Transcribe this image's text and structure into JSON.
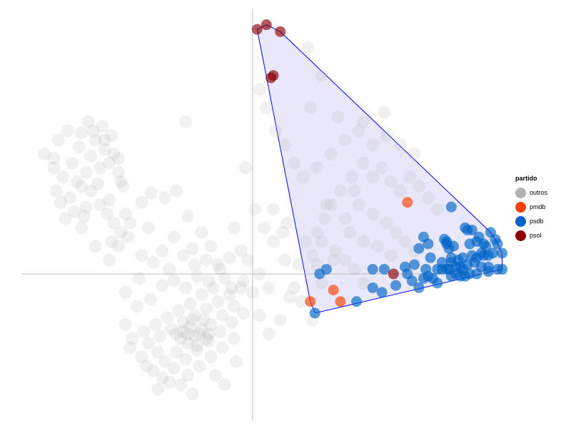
{
  "chart_data": {
    "type": "scatter",
    "title": "",
    "xlabel": "",
    "ylabel": "",
    "xlim": [
      -1.0,
      1.1
    ],
    "ylim": [
      -0.6,
      1.15
    ],
    "axis_lines_at_zero": true,
    "grid": false,
    "legend": {
      "title": "partido",
      "placement": "right",
      "items": [
        {
          "label": "outros",
          "color": "#b3b3b3"
        },
        {
          "label": "pmdb",
          "color": "#ff3f00"
        },
        {
          "label": "psdb",
          "color": "#0064c8"
        },
        {
          "label": "psol",
          "color": "#8b0000"
        }
      ]
    },
    "hull": {
      "fill": "#e5e5fa",
      "stroke": "#0000ff"
    },
    "series": [
      {
        "name": "psol",
        "color": "#8b0000",
        "points": [
          [
            0.02,
            1.06
          ],
          [
            0.06,
            1.08
          ],
          [
            0.12,
            1.05
          ],
          [
            0.09,
            0.86
          ],
          [
            0.08,
            0.85
          ],
          [
            0.61,
            -0.0
          ]
        ]
      },
      {
        "name": "pmdb",
        "color": "#ff3f00",
        "points": [
          [
            0.67,
            0.31
          ],
          [
            0.35,
            -0.07
          ],
          [
            0.25,
            -0.12
          ],
          [
            0.38,
            -0.12
          ]
        ]
      },
      {
        "name": "psdb",
        "color": "#0064c8",
        "points": [
          [
            0.86,
            0.29
          ],
          [
            0.27,
            -0.17
          ],
          [
            0.29,
            -0.0
          ],
          [
            0.32,
            0.02
          ],
          [
            0.52,
            0.02
          ],
          [
            0.57,
            0.02
          ],
          [
            0.66,
            0.03
          ],
          [
            0.52,
            -0.06
          ],
          [
            0.56,
            -0.08
          ],
          [
            0.45,
            -0.12
          ],
          [
            0.62,
            -0.05
          ],
          [
            0.74,
            0.16
          ],
          [
            0.76,
            0.13
          ],
          [
            0.72,
            0.11
          ],
          [
            0.77,
            0.07
          ],
          [
            0.84,
            0.14
          ],
          [
            0.83,
            0.15
          ],
          [
            0.84,
            0.13
          ],
          [
            0.85,
            0.11
          ],
          [
            0.87,
            0.12
          ],
          [
            0.86,
            0.07
          ],
          [
            0.86,
            0.05
          ],
          [
            0.89,
            0.06
          ],
          [
            0.91,
            0.07
          ],
          [
            0.93,
            0.04
          ],
          [
            0.95,
            0.08
          ],
          [
            0.97,
            0.07
          ],
          [
            0.99,
            0.09
          ],
          [
            0.94,
            0.13
          ],
          [
            0.93,
            0.19
          ],
          [
            0.92,
            0.2
          ],
          [
            0.97,
            0.14
          ],
          [
            1.0,
            0.08
          ],
          [
            1.01,
            0.12
          ],
          [
            1.02,
            0.08
          ],
          [
            1.03,
            0.18
          ],
          [
            1.04,
            0.09
          ],
          [
            1.05,
            0.15
          ],
          [
            1.06,
            0.13
          ],
          [
            1.08,
            0.09
          ],
          [
            1.06,
            0.02
          ],
          [
            1.08,
            0.02
          ],
          [
            1.02,
            0.03
          ],
          [
            0.99,
            0.03
          ],
          [
            0.97,
            0.0
          ],
          [
            0.94,
            0.0
          ],
          [
            0.92,
            -0.01
          ],
          [
            0.9,
            -0.01
          ],
          [
            0.86,
            -0.01
          ],
          [
            0.84,
            0.02
          ],
          [
            0.82,
            0.02
          ],
          [
            0.8,
            0.02
          ],
          [
            0.78,
            -0.02
          ],
          [
            0.76,
            -0.01
          ],
          [
            0.74,
            -0.02
          ],
          [
            0.7,
            0.04
          ],
          [
            0.75,
            0.02
          ],
          [
            0.8,
            -0.04
          ],
          [
            0.72,
            -0.06
          ],
          [
            0.69,
            -0.03
          ],
          [
            0.67,
            0.0
          ],
          [
            0.88,
            -0.0
          ],
          [
            0.91,
            0.02
          ],
          [
            0.96,
            0.05
          ],
          [
            1.02,
            0.01
          ],
          [
            1.0,
            0.13
          ],
          [
            0.98,
            0.16
          ],
          [
            0.95,
            0.19
          ],
          [
            0.9,
            0.03
          ],
          [
            0.88,
            0.03
          ],
          [
            0.85,
            0.02
          ],
          [
            0.82,
            0.05
          ]
        ]
      },
      {
        "name": "outros",
        "color": "#b3b3b3",
        "points": [
          [
            -0.82,
            0.42
          ],
          [
            -0.78,
            0.48
          ],
          [
            -0.75,
            0.55
          ],
          [
            -0.72,
            0.44
          ],
          [
            -0.7,
            0.51
          ],
          [
            -0.68,
            0.58
          ],
          [
            -0.66,
            0.46
          ],
          [
            -0.64,
            0.54
          ],
          [
            -0.62,
            0.48
          ],
          [
            -0.6,
            0.52
          ],
          [
            -0.58,
            0.44
          ],
          [
            -0.74,
            0.38
          ],
          [
            -0.79,
            0.33
          ],
          [
            -0.85,
            0.36
          ],
          [
            -0.86,
            0.46
          ],
          [
            -0.9,
            0.52
          ],
          [
            -0.84,
            0.58
          ],
          [
            -0.8,
            0.62
          ],
          [
            -0.76,
            0.4
          ],
          [
            -0.7,
            0.36
          ],
          [
            -0.66,
            0.3
          ],
          [
            -0.72,
            0.29
          ],
          [
            -0.77,
            0.27
          ],
          [
            -0.73,
            0.25
          ],
          [
            -0.67,
            0.39
          ],
          [
            -0.63,
            0.26
          ],
          [
            -0.6,
            0.22
          ],
          [
            -0.57,
            0.18
          ],
          [
            -0.62,
            0.32
          ],
          [
            -0.55,
            0.26
          ],
          [
            -0.53,
            0.22
          ],
          [
            -0.69,
            0.62
          ],
          [
            -0.65,
            0.64
          ],
          [
            -0.61,
            0.6
          ],
          [
            -0.71,
            0.66
          ],
          [
            -0.74,
            0.61
          ],
          [
            -0.58,
            0.5
          ],
          [
            -0.56,
            0.38
          ],
          [
            -0.81,
            0.24
          ],
          [
            -0.83,
            0.31
          ],
          [
            -0.68,
            0.12
          ],
          [
            -0.61,
            0.14
          ],
          [
            -0.54,
            0.16
          ],
          [
            -0.48,
            0.31
          ],
          [
            -0.44,
            0.35
          ],
          [
            -0.38,
            0.33
          ],
          [
            -0.33,
            0.36
          ],
          [
            -0.28,
            0.25
          ],
          [
            -0.22,
            0.18
          ],
          [
            -0.18,
            0.12
          ],
          [
            -0.34,
            0.16
          ],
          [
            -0.39,
            0.1
          ],
          [
            -0.43,
            0.05
          ],
          [
            -0.48,
            0.08
          ],
          [
            -0.3,
            0.08
          ],
          [
            -0.25,
            0.04
          ],
          [
            -0.2,
            0.06
          ],
          [
            -0.15,
            0.04
          ],
          [
            -0.1,
            0.07
          ],
          [
            -0.05,
            0.1
          ],
          [
            -0.12,
            -0.02
          ],
          [
            -0.17,
            -0.06
          ],
          [
            -0.22,
            -0.09
          ],
          [
            -0.27,
            -0.13
          ],
          [
            -0.32,
            -0.16
          ],
          [
            -0.37,
            -0.19
          ],
          [
            -0.42,
            -0.22
          ],
          [
            -0.47,
            -0.25
          ],
          [
            -0.52,
            -0.28
          ],
          [
            -0.45,
            -0.3
          ],
          [
            -0.4,
            -0.27
          ],
          [
            -0.35,
            -0.24
          ],
          [
            -0.3,
            -0.21
          ],
          [
            -0.25,
            -0.18
          ],
          [
            -0.2,
            -0.15
          ],
          [
            -0.15,
            -0.12
          ],
          [
            -0.1,
            -0.09
          ],
          [
            -0.05,
            -0.06
          ],
          [
            -0.08,
            -0.14
          ],
          [
            -0.13,
            -0.18
          ],
          [
            -0.18,
            -0.22
          ],
          [
            -0.23,
            -0.26
          ],
          [
            -0.28,
            -0.3
          ],
          [
            -0.33,
            -0.34
          ],
          [
            -0.38,
            -0.38
          ],
          [
            -0.43,
            -0.42
          ],
          [
            -0.48,
            -0.36
          ],
          [
            -0.53,
            -0.32
          ],
          [
            -0.39,
            -0.45
          ],
          [
            -0.34,
            -0.41
          ],
          [
            -0.29,
            -0.37
          ],
          [
            -0.24,
            -0.33
          ],
          [
            -0.19,
            -0.29
          ],
          [
            -0.14,
            -0.25
          ],
          [
            -0.09,
            -0.21
          ],
          [
            -0.04,
            -0.17
          ],
          [
            -0.28,
            -0.44
          ],
          [
            -0.23,
            -0.4
          ],
          [
            -0.18,
            -0.36
          ],
          [
            -0.13,
            -0.32
          ],
          [
            -0.08,
            -0.28
          ],
          [
            -0.31,
            -0.48
          ],
          [
            -0.26,
            -0.52
          ],
          [
            -0.36,
            -0.47
          ],
          [
            -0.41,
            -0.5
          ],
          [
            -0.46,
            -0.4
          ],
          [
            -0.5,
            -0.14
          ],
          [
            -0.55,
            -0.08
          ],
          [
            -0.49,
            -0.02
          ],
          [
            -0.44,
            -0.11
          ],
          [
            -0.39,
            -0.05
          ],
          [
            -0.34,
            -0.03
          ],
          [
            -0.29,
            -0.06
          ],
          [
            -0.24,
            -0.01
          ],
          [
            -0.19,
            -0.03
          ],
          [
            -0.14,
            0.02
          ],
          [
            -0.09,
            -0.06
          ],
          [
            -0.04,
            -0.03
          ],
          [
            -0.3,
            -0.25
          ],
          [
            -0.27,
            -0.23
          ],
          [
            -0.25,
            -0.27
          ],
          [
            -0.22,
            -0.24
          ],
          [
            -0.2,
            -0.28
          ],
          [
            -0.26,
            -0.2
          ],
          [
            -0.31,
            -0.28
          ],
          [
            -0.21,
            -0.2
          ],
          [
            -0.28,
            -0.26
          ],
          [
            -0.24,
            -0.31
          ],
          [
            -0.33,
            -0.26
          ],
          [
            -0.19,
            -0.26
          ],
          [
            -0.02,
            0.06
          ],
          [
            0.0,
            -0.08
          ],
          [
            0.03,
            -0.18
          ],
          [
            0.07,
            -0.26
          ],
          [
            0.12,
            -0.2
          ],
          [
            0.16,
            -0.1
          ],
          [
            0.2,
            0.04
          ],
          [
            0.23,
            0.14
          ],
          [
            0.28,
            0.18
          ],
          [
            0.31,
            0.24
          ],
          [
            0.34,
            0.3
          ],
          [
            0.38,
            0.36
          ],
          [
            0.43,
            0.42
          ],
          [
            0.48,
            0.48
          ],
          [
            0.52,
            0.42
          ],
          [
            0.56,
            0.46
          ],
          [
            0.6,
            0.4
          ],
          [
            0.64,
            0.36
          ],
          [
            0.68,
            0.42
          ],
          [
            0.72,
            0.38
          ],
          [
            0.76,
            0.33
          ],
          [
            0.8,
            0.28
          ],
          [
            0.7,
            0.52
          ],
          [
            0.64,
            0.56
          ],
          [
            0.58,
            0.6
          ],
          [
            0.52,
            0.56
          ],
          [
            0.46,
            0.62
          ],
          [
            0.4,
            0.58
          ],
          [
            0.34,
            0.52
          ],
          [
            0.28,
            0.46
          ],
          [
            0.22,
            0.42
          ],
          [
            0.18,
            0.48
          ],
          [
            0.14,
            0.56
          ],
          [
            0.1,
            0.62
          ],
          [
            0.06,
            0.72
          ],
          [
            0.03,
            0.8
          ],
          [
            0.25,
            0.72
          ],
          [
            0.37,
            0.68
          ],
          [
            0.48,
            0.66
          ],
          [
            0.57,
            0.7
          ],
          [
            0.46,
            0.3
          ],
          [
            0.52,
            0.26
          ],
          [
            0.58,
            0.22
          ],
          [
            0.62,
            0.18
          ],
          [
            0.66,
            0.14
          ],
          [
            0.7,
            0.1
          ],
          [
            0.54,
            0.12
          ],
          [
            0.48,
            0.14
          ],
          [
            0.42,
            0.18
          ],
          [
            0.36,
            0.1
          ],
          [
            0.3,
            0.14
          ],
          [
            0.26,
            0.08
          ],
          [
            0.4,
            0.06
          ],
          [
            0.44,
            0.02
          ],
          [
            0.48,
            -0.04
          ],
          [
            0.6,
            0.08
          ],
          [
            0.3,
            -0.04
          ],
          [
            0.18,
            -0.06
          ],
          [
            0.14,
            0.06
          ],
          [
            0.09,
            0.14
          ],
          [
            0.05,
            0.2
          ],
          [
            0.01,
            0.28
          ],
          [
            0.09,
            0.28
          ],
          [
            0.15,
            0.22
          ],
          [
            0.21,
            -0.12
          ],
          [
            0.26,
            -0.2
          ],
          [
            0.32,
            0.3
          ],
          [
            0.28,
            0.04
          ],
          [
            0.07,
            -0.06
          ],
          [
            0.03,
            0.0
          ],
          [
            0.13,
            0.18
          ],
          [
            0.4,
            0.24
          ],
          [
            0.44,
            0.36
          ],
          [
            0.35,
            0.06
          ],
          [
            -0.58,
            0.12
          ],
          [
            -0.45,
            0.2
          ],
          [
            -0.26,
            0.11
          ],
          [
            -0.08,
            0.2
          ],
          [
            0.3,
            0.86
          ],
          [
            0.24,
            0.98
          ],
          [
            -0.03,
            0.46
          ],
          [
            -0.29,
            0.66
          ],
          [
            -0.57,
            0.4
          ],
          [
            -0.64,
            0.58
          ],
          [
            -0.86,
            0.5
          ],
          [
            -0.74,
            0.2
          ],
          [
            -0.62,
            0.06
          ],
          [
            -0.36,
            0.02
          ],
          [
            -0.41,
            -0.34
          ],
          [
            -0.55,
            -0.22
          ],
          [
            -0.07,
            -0.38
          ],
          [
            -0.16,
            -0.44
          ],
          [
            -0.12,
            -0.48
          ]
        ]
      }
    ]
  }
}
